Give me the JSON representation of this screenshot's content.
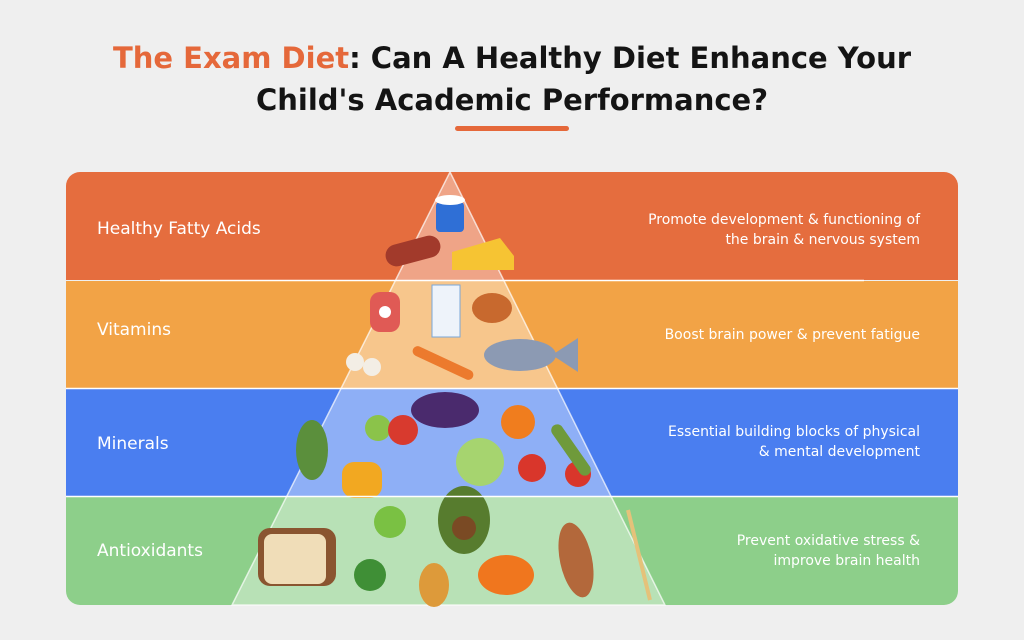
{
  "header": {
    "title_highlight": "The Exam Diet",
    "title_rest": ": Can A Healthy Diet Enhance Your",
    "title_line2": "Child's Academic Performance?"
  },
  "tiers": [
    {
      "label": "Healthy Fatty Acids",
      "description": [
        "Promote development & functioning of",
        "the brain & nervous system"
      ]
    },
    {
      "label": "Vitamins",
      "description": [
        "Boost brain power & prevent fatigue"
      ]
    },
    {
      "label": "Minerals",
      "description": [
        "Essential building blocks of physical",
        "& mental development"
      ]
    },
    {
      "label": "Antioxidants",
      "description": [
        "Prevent oxidative stress &",
        "improve brain health"
      ]
    }
  ]
}
